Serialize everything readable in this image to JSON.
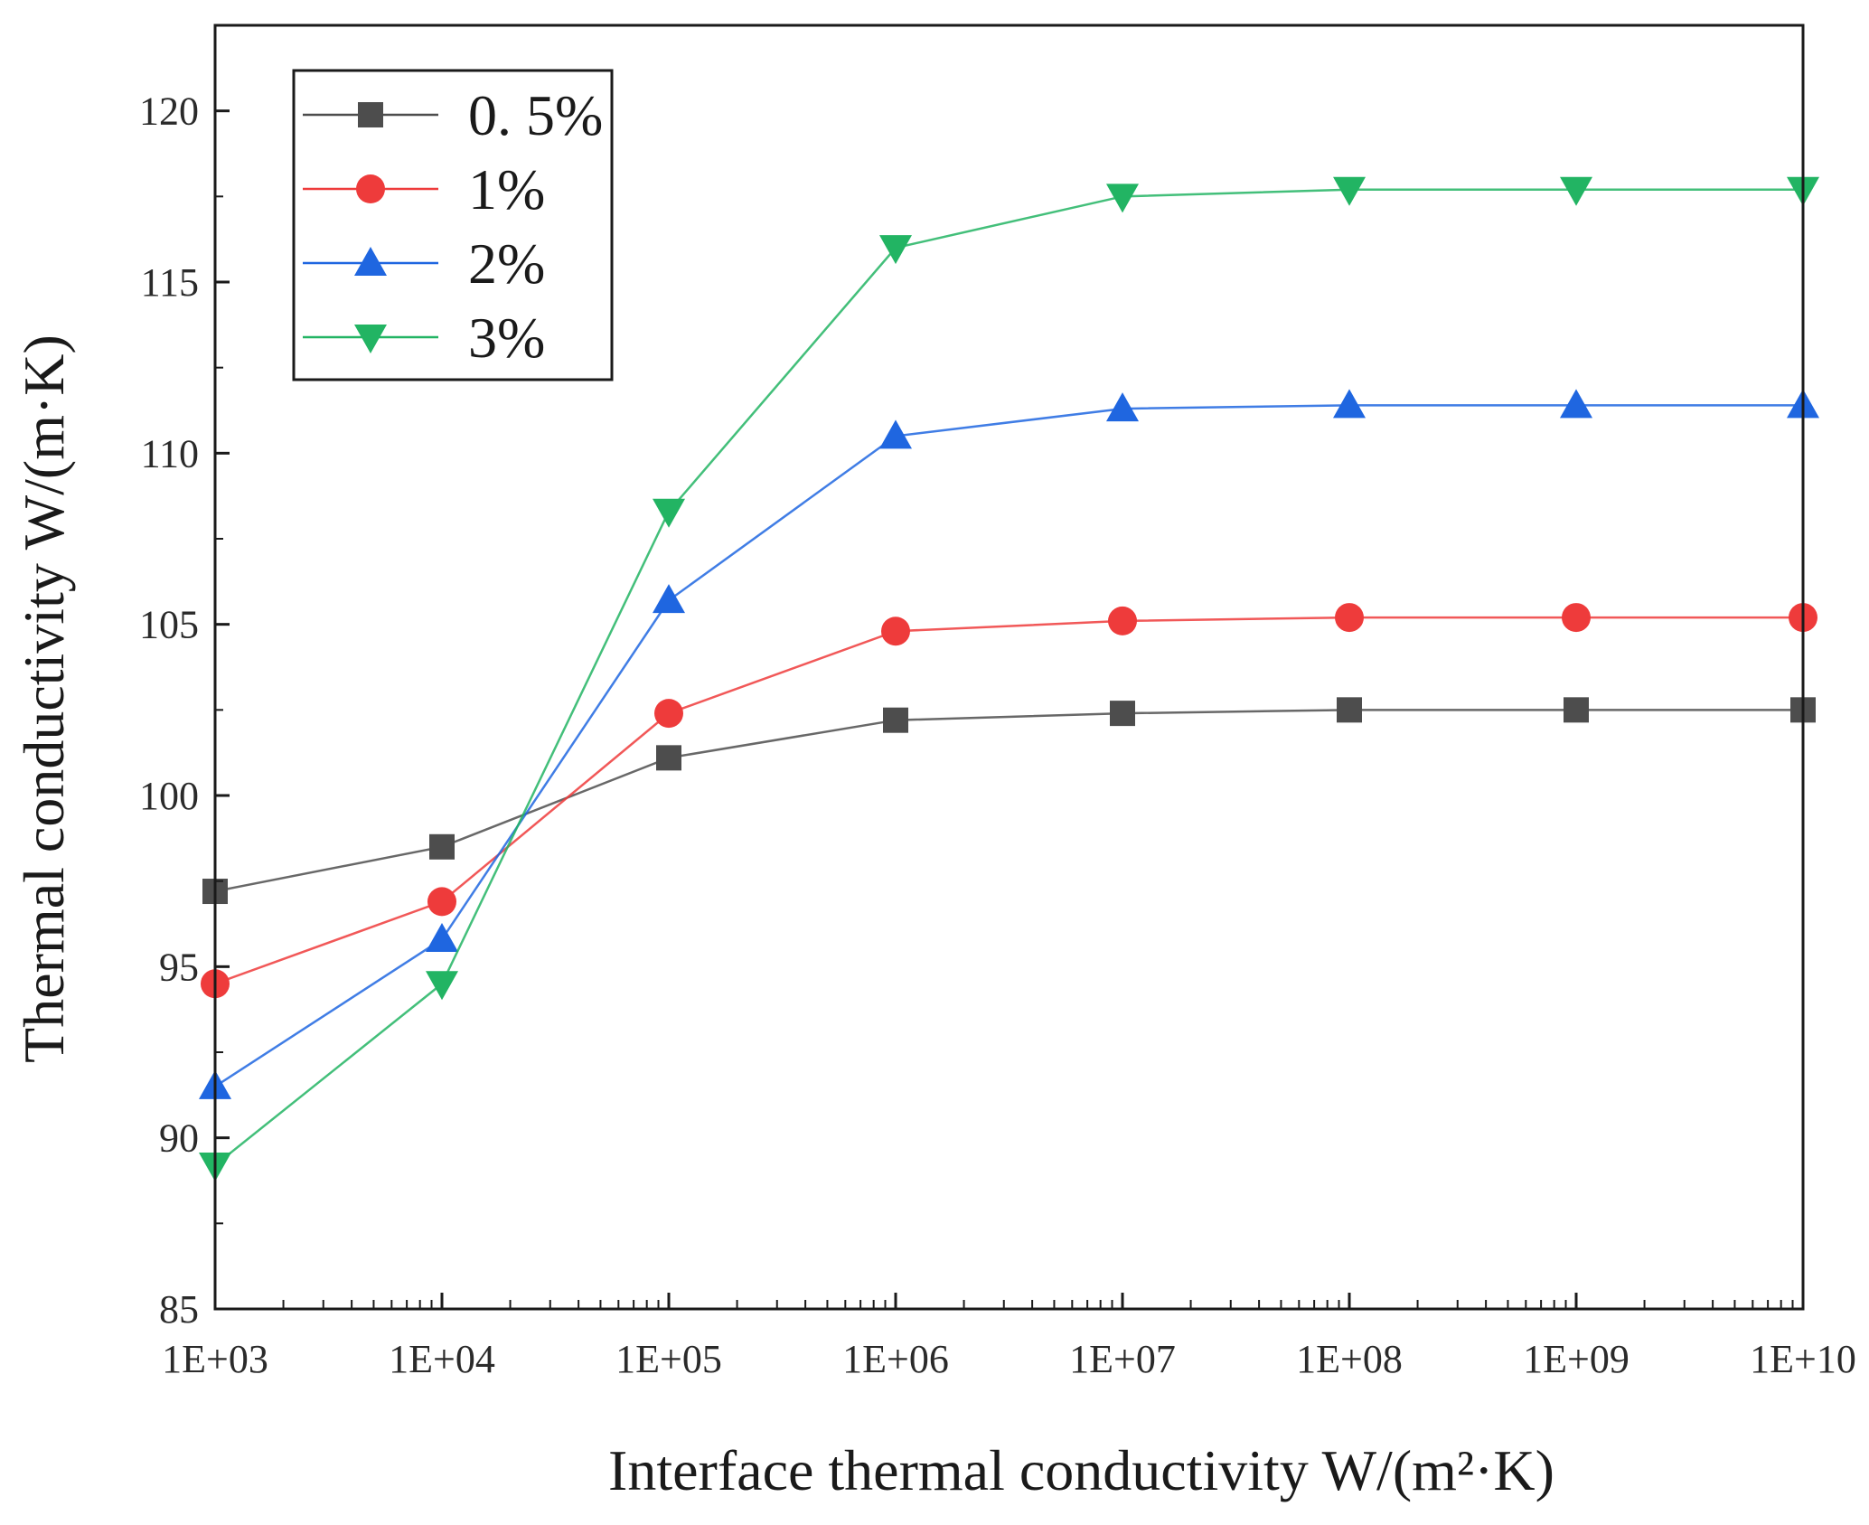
{
  "chart_data": {
    "type": "line",
    "title": "",
    "xlabel": "Interface thermal conductivity  W/(m²·K)",
    "ylabel": "Thermal conductivity  W/(m·K)",
    "x_scale": "log",
    "xlim": [
      1000,
      10000000000
    ],
    "ylim": [
      85,
      122.5
    ],
    "x": [
      1000,
      10000,
      100000,
      1000000,
      10000000,
      100000000,
      1000000000,
      10000000000
    ],
    "x_tick_labels": [
      "1E+03",
      "1E+04",
      "1E+05",
      "1E+06",
      "1E+07",
      "1E+08",
      "1E+09",
      "1E+10"
    ],
    "y_ticks": [
      85,
      90,
      95,
      100,
      105,
      110,
      115,
      120
    ],
    "y_tick_labels": [
      "85",
      "90",
      "95",
      "100",
      "105",
      "110",
      "115",
      "120"
    ],
    "grid": false,
    "legend_position": "top-left",
    "series": [
      {
        "name": "0. 5%",
        "color": "#4d4d4d",
        "marker": "square",
        "values": [
          97.2,
          98.5,
          101.1,
          102.2,
          102.4,
          102.5,
          102.5,
          102.5
        ]
      },
      {
        "name": "1%",
        "color": "#ee3b3b",
        "marker": "circle",
        "values": [
          94.5,
          96.9,
          102.4,
          104.8,
          105.1,
          105.2,
          105.2,
          105.2
        ]
      },
      {
        "name": "2%",
        "color": "#1f66e0",
        "marker": "triangle-up",
        "values": [
          91.5,
          95.8,
          105.7,
          110.5,
          111.3,
          111.4,
          111.4,
          111.4
        ]
      },
      {
        "name": "3%",
        "color": "#22b463",
        "marker": "triangle-down",
        "values": [
          89.2,
          94.5,
          108.3,
          116.0,
          117.5,
          117.7,
          117.7,
          117.7
        ]
      }
    ]
  }
}
